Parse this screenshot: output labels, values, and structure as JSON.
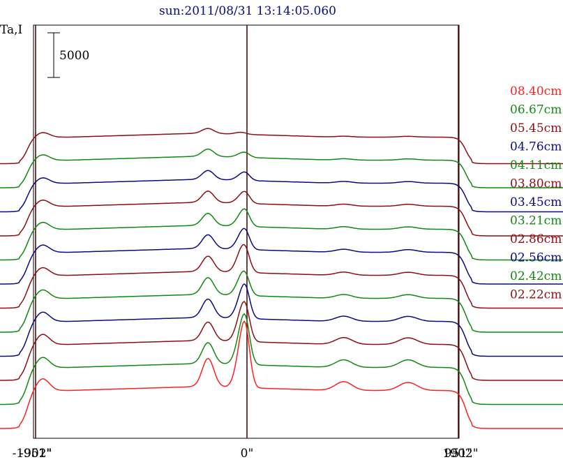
{
  "title": "sun:2011/08/31 13:14:05.060",
  "colors": {
    "red": "#ff2020",
    "green": "#118811",
    "maroon": "#8b0f14",
    "blue": "#0a0a80",
    "axis": "#000000",
    "marker": "#4a1010"
  },
  "chart_data": {
    "type": "line",
    "title": "sun:2011/08/31 13:14:05.060",
    "ylabel": "Ta,I",
    "scale_bar": {
      "label": "5000",
      "value": 5000
    },
    "xlim": [
      -1902,
      1902
    ],
    "x_ticks": [
      {
        "value": -1902,
        "label": "-1902\""
      },
      {
        "value": -951,
        "label": "-951\""
      },
      {
        "value": 0,
        "label": "0\""
      },
      {
        "value": 951,
        "label": "951\""
      },
      {
        "value": 1902,
        "label": "1902\""
      }
    ],
    "vertical_markers": [
      -951,
      0,
      951
    ],
    "series": [
      {
        "name": "08.40cm",
        "color": "#ff2020",
        "base": 0,
        "amps": [
          1500,
          3500,
          4100,
          5300,
          1100,
          1000
        ]
      },
      {
        "name": "06.67cm",
        "color": "#118811",
        "base": 1,
        "amps": [
          1300,
          2600,
          3200,
          4000,
          950,
          950
        ]
      },
      {
        "name": "05.45cm",
        "color": "#8b0f14",
        "base": 2,
        "amps": [
          1300,
          2300,
          2700,
          3000,
          850,
          820
        ]
      },
      {
        "name": "04.76cm",
        "color": "#0a0a80",
        "base": 3,
        "amps": [
          1200,
          2300,
          2100,
          2800,
          650,
          620
        ]
      },
      {
        "name": "04.11cm",
        "color": "#118811",
        "base": 4,
        "amps": [
          1100,
          2100,
          1800,
          1700,
          480,
          460
        ]
      },
      {
        "name": "03.80cm",
        "color": "#8b0f14",
        "base": 5,
        "amps": [
          1000,
          1900,
          2100,
          1900,
          400,
          380
        ]
      },
      {
        "name": "03.45cm",
        "color": "#0a0a80",
        "base": 6,
        "amps": [
          950,
          1700,
          1400,
          1600,
          380,
          330
        ]
      },
      {
        "name": "03.21cm",
        "color": "#118811",
        "base": 7,
        "amps": [
          900,
          1500,
          1100,
          1400,
          320,
          300
        ]
      },
      {
        "name": "02.86cm",
        "color": "#8b0f14",
        "base": 8,
        "amps": [
          800,
          1400,
          700,
          1000,
          260,
          240
        ]
      },
      {
        "name": "02.56cm",
        "color": "#0a0a80",
        "base": 9,
        "amps": [
          700,
          1100,
          500,
          700,
          220,
          200
        ]
      },
      {
        "name": "02.42cm",
        "color": "#118811",
        "base": 10,
        "amps": [
          700,
          900,
          350,
          400,
          180,
          160
        ]
      },
      {
        "name": "02.22cm",
        "color": "#8b0f14",
        "base": 11,
        "amps": [
          600,
          600,
          250,
          0,
          120,
          100
        ]
      }
    ]
  }
}
